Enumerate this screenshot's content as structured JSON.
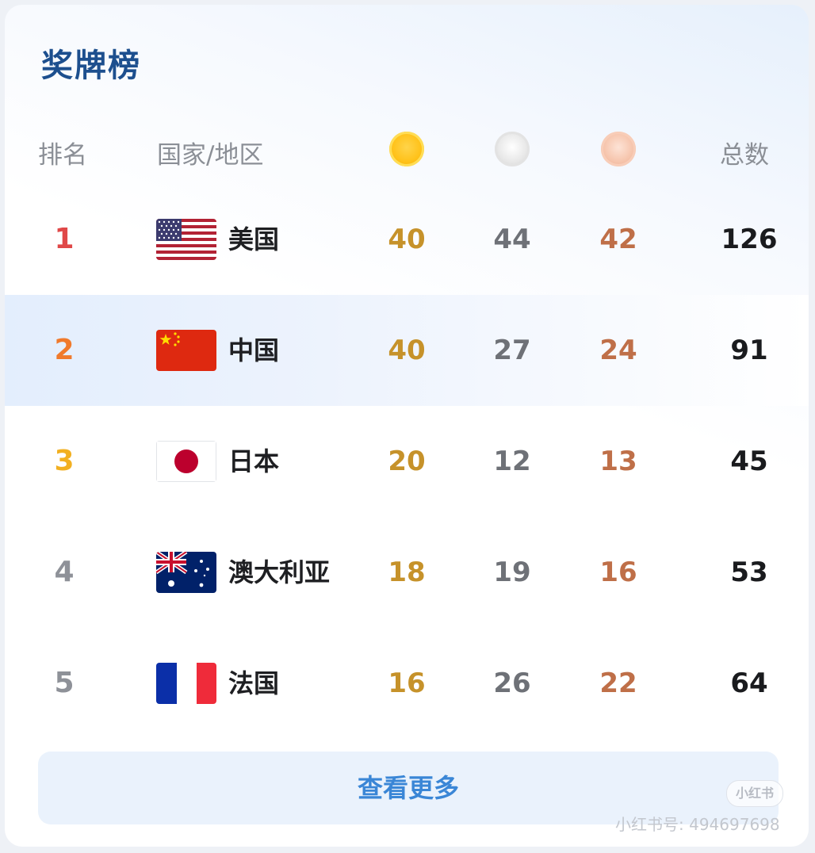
{
  "title": "奖牌榜",
  "header": {
    "rank": "排名",
    "country": "国家/地区",
    "total": "总数",
    "gold_icon": "gold-medal-icon",
    "silver_icon": "silver-medal-icon",
    "bronze_icon": "bronze-medal-icon"
  },
  "rows": [
    {
      "rank": "1",
      "country": "美国",
      "flag": "usa-flag-icon",
      "gold": "40",
      "silver": "44",
      "bronze": "42",
      "total": "126"
    },
    {
      "rank": "2",
      "country": "中国",
      "flag": "china-flag-icon",
      "gold": "40",
      "silver": "27",
      "bronze": "24",
      "total": "91"
    },
    {
      "rank": "3",
      "country": "日本",
      "flag": "japan-flag-icon",
      "gold": "20",
      "silver": "12",
      "bronze": "13",
      "total": "45"
    },
    {
      "rank": "4",
      "country": "澳大利亚",
      "flag": "australia-flag-icon",
      "gold": "18",
      "silver": "19",
      "bronze": "16",
      "total": "53"
    },
    {
      "rank": "5",
      "country": "法国",
      "flag": "france-flag-icon",
      "gold": "16",
      "silver": "26",
      "bronze": "22",
      "total": "64"
    }
  ],
  "more_label": "查看更多",
  "watermark": {
    "badge": "小红书",
    "text": "小红书号: 494697698"
  },
  "colors": {
    "title": "#1d4f8e",
    "gold": "#c6922a",
    "silver": "#6e7177",
    "bronze": "#bf6f48",
    "rank1": "#e04848",
    "rank2": "#f07a2c",
    "rank3": "#f2b021",
    "link": "#3a86d6"
  }
}
